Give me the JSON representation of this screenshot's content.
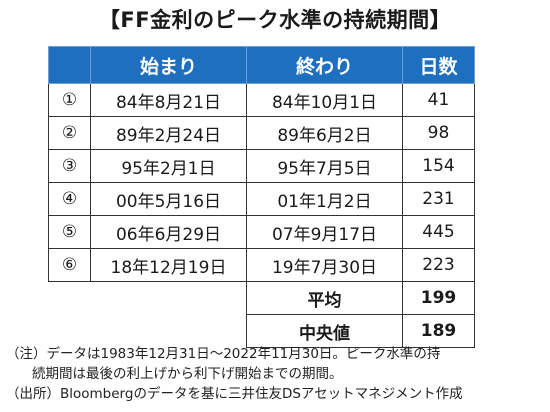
{
  "title": "【FF金利のピーク水準の持続期間】",
  "table": {
    "headers": [
      "",
      "始まり",
      "終わり",
      "日数"
    ],
    "rows": [
      {
        "no": "①",
        "start": "84年8月21日",
        "end": "84年10月1日",
        "days": "41"
      },
      {
        "no": "②",
        "start": "89年2月24日",
        "end": "89年6月2日",
        "days": "98"
      },
      {
        "no": "③",
        "start": "95年2月1日",
        "end": "95年7月5日",
        "days": "154"
      },
      {
        "no": "④",
        "start": "00年5月16日",
        "end": "01年1月2日",
        "days": "231"
      },
      {
        "no": "⑤",
        "start": "06年6月29日",
        "end": "07年9月17日",
        "days": "445"
      },
      {
        "no": "⑥",
        "start": "18年12月19日",
        "end": "19年7月30日",
        "days": "223"
      }
    ],
    "average_label": "平均",
    "average_value": "199",
    "median_label": "中央値",
    "median_value": "189"
  },
  "notes": {
    "line1": "（注）データは1983年12月31日～2022年11月30日。ピーク水準の持",
    "line2": "続期間は最後の利上げから利下げ開始までの期間。",
    "line3": "（出所）Bloombergのデータを基に三井住友DSアセットマネジメント作成"
  },
  "colors": {
    "header_bg": "#1f6fbf",
    "header_text": "#ffffff",
    "border": "#333333"
  }
}
